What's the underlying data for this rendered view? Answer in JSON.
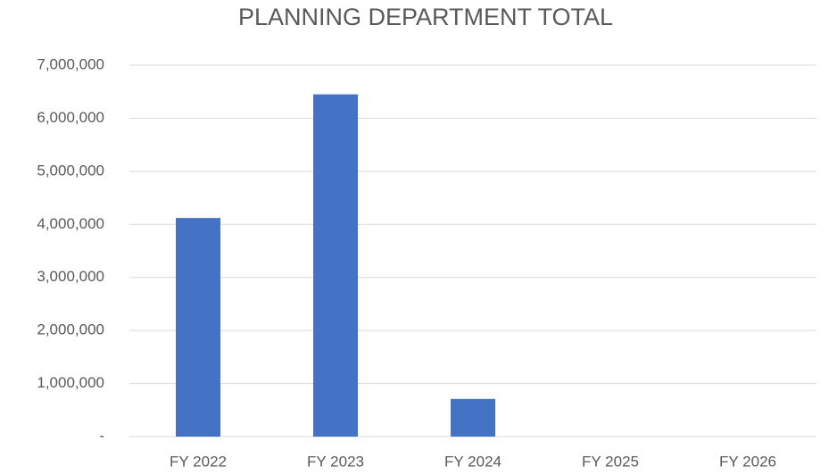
{
  "chart_data": {
    "type": "bar",
    "title": "PLANNING DEPARTMENT TOTAL",
    "categories": [
      "FY 2022",
      "FY 2023",
      "FY 2024",
      "FY 2025",
      "FY 2026"
    ],
    "values": [
      4120000,
      6450000,
      710000,
      0,
      0
    ],
    "color": "#4472c4",
    "ylim": [
      0,
      7000000
    ],
    "yticks": [
      {
        "value": 0,
        "label": "-"
      },
      {
        "value": 1000000,
        "label": "1,000,000"
      },
      {
        "value": 2000000,
        "label": "2,000,000"
      },
      {
        "value": 3000000,
        "label": "3,000,000"
      },
      {
        "value": 4000000,
        "label": "4,000,000"
      },
      {
        "value": 5000000,
        "label": "5,000,000"
      },
      {
        "value": 6000000,
        "label": "6,000,000"
      },
      {
        "value": 7000000,
        "label": "7,000,000"
      }
    ],
    "grid": true
  }
}
